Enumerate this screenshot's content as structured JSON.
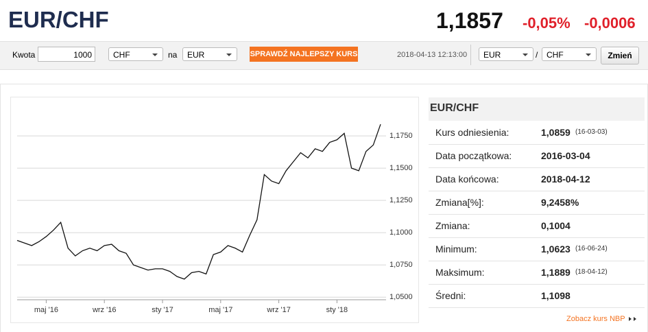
{
  "header": {
    "title": "EUR/CHF",
    "price": "1,1857",
    "change_percent": "-0,05%",
    "change": "-0,0006"
  },
  "toolbar": {
    "amount_label": "Kwota",
    "amount": "1000",
    "from": "CHF",
    "to_label": "na",
    "to": "EUR",
    "button": "SPRAWDŹ NAJLEPSZY KURS",
    "timestamp": "2018-04-13 12:13:00",
    "pair_from": "EUR",
    "separator": "/",
    "pair_to": "CHF",
    "change_button": "Zmień"
  },
  "chart_data": {
    "type": "line",
    "color": "#111111",
    "categories": [
      null,
      null,
      null,
      null,
      "maj '16",
      null,
      null,
      null,
      null,
      null,
      null,
      null,
      "wrz '16",
      null,
      null,
      null,
      null,
      null,
      null,
      null,
      "sty '17",
      null,
      null,
      null,
      null,
      null,
      null,
      null,
      "maj '17",
      null,
      null,
      null,
      null,
      null,
      null,
      null,
      "wrz '17",
      null,
      null,
      null,
      null,
      null,
      null,
      null,
      "sty '18",
      null,
      null,
      null,
      null,
      null,
      null
    ],
    "values": [
      1.094,
      1.092,
      1.09,
      1.093,
      1.097,
      1.102,
      1.108,
      1.088,
      1.082,
      1.086,
      1.088,
      1.086,
      1.09,
      1.091,
      1.086,
      1.084,
      1.075,
      1.073,
      1.071,
      1.072,
      1.072,
      1.07,
      1.066,
      1.064,
      1.069,
      1.07,
      1.068,
      1.083,
      1.085,
      1.09,
      1.088,
      1.085,
      1.098,
      1.11,
      1.145,
      1.14,
      1.138,
      1.148,
      1.155,
      1.162,
      1.158,
      1.165,
      1.163,
      1.17,
      1.172,
      1.177,
      1.15,
      1.148,
      1.163,
      1.168,
      1.184
    ],
    "ylim": [
      1.048,
      1.199
    ],
    "yticks": [
      {
        "value": 1.05,
        "label": "1,0500"
      },
      {
        "value": 1.075,
        "label": "1,0750"
      },
      {
        "value": 1.1,
        "label": "1,1000"
      },
      {
        "value": 1.125,
        "label": "1,1250"
      },
      {
        "value": 1.15,
        "label": "1,1500"
      },
      {
        "value": 1.175,
        "label": "1,1750"
      }
    ],
    "grid": true
  },
  "panel": {
    "title": "EUR/CHF",
    "rows": [
      {
        "label": "Kurs odniesienia:",
        "value": "1,0859",
        "note": "(16-03-03)"
      },
      {
        "label": "Data początkowa:",
        "value": "2016-03-04"
      },
      {
        "label": "Data końcowa:",
        "value": "2018-04-12"
      },
      {
        "label": "Zmiana[%]:",
        "value": "9,2458%"
      },
      {
        "label": "Zmiana:",
        "value": "0,1004"
      },
      {
        "label": "Minimum:",
        "value": "1,0623",
        "note": "(16-06-24)"
      },
      {
        "label": "Maksimum:",
        "value": "1,1889",
        "note": "(18-04-12)"
      },
      {
        "label": "Średni:",
        "value": "1,1098"
      }
    ],
    "link": "Zobacz kurs NBP"
  }
}
